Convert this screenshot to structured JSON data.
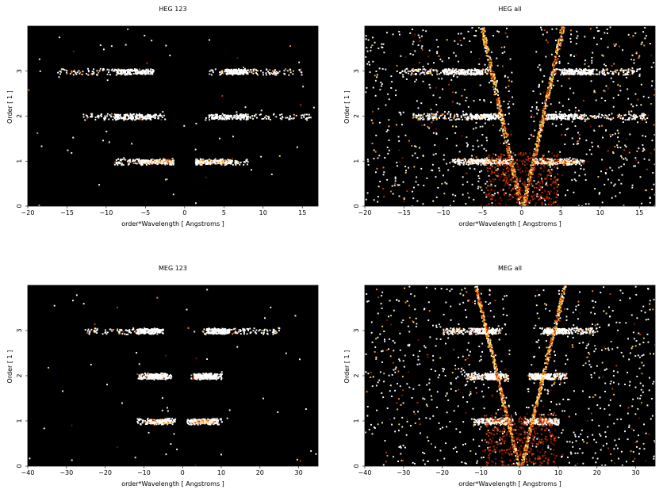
{
  "chart_data": [
    {
      "type": "heatmap",
      "title": "HEG 123",
      "xlabel": "order*Wavelength [ Angstroms ]",
      "ylabel": "Order [ 1 ]",
      "xlim": [
        -20,
        17
      ],
      "ylim": [
        0,
        4
      ],
      "xticks": [
        -20,
        -15,
        -10,
        -5,
        0,
        5,
        10,
        15
      ],
      "yticks": [
        0,
        1,
        2,
        3
      ],
      "colormap": "black-red-yellow-white",
      "bands": [
        {
          "order": 1,
          "x_ranges": [
            [
              -9,
              -1.5
            ],
            [
              1.3,
              8
            ]
          ],
          "core_ranges": [
            [
              -6,
              -1.5
            ],
            [
              1.3,
              6
            ]
          ],
          "intensity": "high"
        },
        {
          "order": 2,
          "x_ranges": [
            [
              -13,
              -2.5
            ],
            [
              2.5,
              16
            ]
          ],
          "core_ranges": [
            [
              -9,
              -3
            ],
            [
              3,
              8
            ]
          ],
          "intensity": "medium"
        },
        {
          "order": 3,
          "x_ranges": [
            [
              -16,
              -4
            ],
            [
              3,
              15
            ]
          ],
          "core_ranges": [
            [
              -9,
              -4
            ],
            [
              5,
              8
            ]
          ],
          "intensity": "medium"
        }
      ],
      "background": "sparse"
    },
    {
      "type": "heatmap",
      "title": "HEG all",
      "xlabel": "order*Wavelength [ Angstroms ]",
      "ylabel": "Order [ 1 ]",
      "xlim": [
        -20,
        17
      ],
      "ylim": [
        0,
        4
      ],
      "xticks": [
        -20,
        -15,
        -10,
        -5,
        0,
        5,
        10,
        15
      ],
      "yticks": [
        0,
        1,
        2,
        3
      ],
      "colormap": "black-red-yellow-white",
      "bands": [
        {
          "order": 1,
          "x_ranges": [
            [
              -9,
              -1.5
            ],
            [
              1.3,
              8
            ]
          ],
          "core_ranges": [
            [
              -7,
              -2
            ],
            [
              1.3,
              7
            ]
          ],
          "intensity": "high"
        },
        {
          "order": 2,
          "x_ranges": [
            [
              -14,
              -2.5
            ],
            [
              2.5,
              16
            ]
          ],
          "core_ranges": [
            [
              -7,
              -3
            ],
            [
              3,
              8
            ]
          ],
          "intensity": "medium"
        },
        {
          "order": 3,
          "x_ranges": [
            [
              -16,
              -4
            ],
            [
              4,
              15
            ]
          ],
          "core_ranges": [
            [
              -10,
              -5
            ],
            [
              5,
              9
            ]
          ],
          "intensity": "medium"
        }
      ],
      "background": "dense"
    },
    {
      "type": "heatmap",
      "title": "MEG 123",
      "xlabel": "order*Wavelength [ Angstroms ]",
      "ylabel": "Order [ 1 ]",
      "xlim": [
        -40,
        35
      ],
      "ylim": [
        0,
        4
      ],
      "xticks": [
        -40,
        -30,
        -20,
        -10,
        0,
        10,
        20,
        30
      ],
      "yticks": [
        0,
        1,
        2,
        3
      ],
      "colormap": "black-red-yellow-white",
      "bands": [
        {
          "order": 1,
          "x_ranges": [
            [
              -12,
              -2
            ],
            [
              1,
              10
            ]
          ],
          "core_ranges": [
            [
              -9,
              -3
            ],
            [
              2,
              9
            ]
          ],
          "intensity": "high"
        },
        {
          "order": 2,
          "x_ranges": [
            [
              -12,
              -3
            ],
            [
              2,
              10
            ]
          ],
          "core_ranges": [
            [
              -9,
              -4
            ],
            [
              3,
              9
            ]
          ],
          "intensity": "medium"
        },
        {
          "order": 3,
          "x_ranges": [
            [
              -25,
              -5
            ],
            [
              5,
              25
            ]
          ],
          "core_ranges": [
            [
              -12,
              -6
            ],
            [
              6,
              12
            ]
          ],
          "intensity": "medium"
        }
      ],
      "background": "sparse"
    },
    {
      "type": "heatmap",
      "title": "MEG all",
      "xlabel": "order*Wavelength [ Angstroms ]",
      "ylabel": "Order [ 1 ]",
      "xlim": [
        -40,
        35
      ],
      "ylim": [
        0,
        4
      ],
      "xticks": [
        -40,
        -30,
        -20,
        -10,
        0,
        10,
        20,
        30
      ],
      "yticks": [
        0,
        1,
        2,
        3
      ],
      "colormap": "black-red-yellow-white",
      "bands": [
        {
          "order": 1,
          "x_ranges": [
            [
              -12,
              -2
            ],
            [
              1,
              10
            ]
          ],
          "core_ranges": [
            [
              -9,
              -3
            ],
            [
              2,
              9
            ]
          ],
          "intensity": "high"
        },
        {
          "order": 2,
          "x_ranges": [
            [
              -14,
              -3
            ],
            [
              2,
              12
            ]
          ],
          "core_ranges": [
            [
              -9,
              -5
            ],
            [
              3,
              8
            ]
          ],
          "intensity": "medium"
        },
        {
          "order": 3,
          "x_ranges": [
            [
              -20,
              -5
            ],
            [
              5,
              20
            ]
          ],
          "core_ranges": [
            [
              -12,
              -6
            ],
            [
              6,
              12
            ]
          ],
          "intensity": "medium"
        }
      ],
      "background": "dense"
    }
  ]
}
